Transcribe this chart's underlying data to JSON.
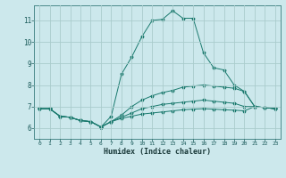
{
  "title": "",
  "xlabel": "Humidex (Indice chaleur)",
  "ylabel": "",
  "bg_color": "#cce8ec",
  "grid_color": "#aacccc",
  "line_color": "#1a7a6e",
  "xlim": [
    -0.5,
    23.5
  ],
  "ylim": [
    5.5,
    11.7
  ],
  "yticks": [
    6,
    7,
    8,
    9,
    10,
    11
  ],
  "xticks": [
    0,
    1,
    2,
    3,
    4,
    5,
    6,
    7,
    8,
    9,
    10,
    11,
    12,
    13,
    14,
    15,
    16,
    17,
    18,
    19,
    20,
    21,
    22,
    23
  ],
  "series": [
    {
      "x": [
        0,
        1,
        2,
        3,
        4,
        5,
        6,
        7,
        8,
        9,
        10,
        11,
        12,
        13,
        14,
        15,
        16,
        17,
        18,
        19,
        20,
        21,
        22,
        23
      ],
      "y": [
        6.9,
        6.9,
        6.55,
        6.5,
        6.35,
        6.3,
        6.05,
        6.55,
        8.5,
        9.3,
        10.25,
        11.0,
        11.05,
        11.45,
        11.1,
        11.1,
        9.5,
        8.8,
        8.7,
        8.0,
        7.7,
        7.0,
        6.95,
        6.9
      ]
    },
    {
      "x": [
        0,
        1,
        2,
        3,
        4,
        5,
        6,
        7,
        8,
        9,
        10,
        11,
        12,
        13,
        14,
        15,
        16,
        17,
        18,
        19,
        20,
        21,
        22,
        23
      ],
      "y": [
        6.9,
        6.9,
        6.55,
        6.5,
        6.35,
        6.3,
        6.05,
        6.3,
        6.6,
        7.0,
        7.3,
        7.5,
        7.65,
        7.75,
        7.9,
        7.95,
        8.0,
        7.95,
        7.9,
        7.85,
        7.7,
        7.0,
        6.95,
        6.9
      ]
    },
    {
      "x": [
        0,
        1,
        2,
        3,
        4,
        5,
        6,
        7,
        8,
        9,
        10,
        11,
        12,
        13,
        14,
        15,
        16,
        17,
        18,
        19,
        20,
        21,
        22,
        23
      ],
      "y": [
        6.9,
        6.9,
        6.55,
        6.5,
        6.35,
        6.3,
        6.05,
        6.3,
        6.5,
        6.7,
        6.9,
        7.0,
        7.1,
        7.15,
        7.2,
        7.25,
        7.3,
        7.25,
        7.2,
        7.15,
        7.0,
        7.0,
        6.95,
        6.9
      ]
    },
    {
      "x": [
        0,
        1,
        2,
        3,
        4,
        5,
        6,
        7,
        8,
        9,
        10,
        11,
        12,
        13,
        14,
        15,
        16,
        17,
        18,
        19,
        20,
        21,
        22,
        23
      ],
      "y": [
        6.9,
        6.9,
        6.55,
        6.5,
        6.35,
        6.3,
        6.05,
        6.3,
        6.45,
        6.55,
        6.65,
        6.7,
        6.75,
        6.8,
        6.85,
        6.88,
        6.9,
        6.88,
        6.85,
        6.83,
        6.8,
        7.0,
        6.95,
        6.9
      ]
    }
  ]
}
